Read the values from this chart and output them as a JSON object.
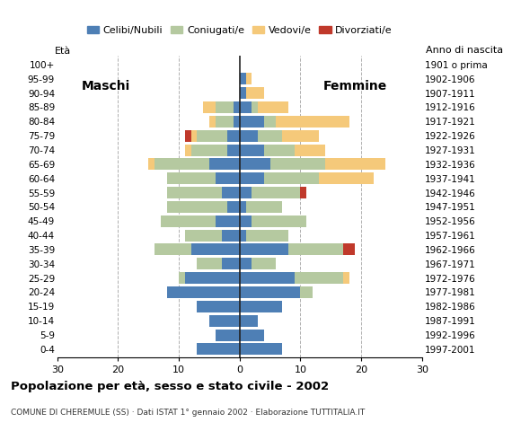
{
  "age_groups": [
    "0-4",
    "5-9",
    "10-14",
    "15-19",
    "20-24",
    "25-29",
    "30-34",
    "35-39",
    "40-44",
    "45-49",
    "50-54",
    "55-59",
    "60-64",
    "65-69",
    "70-74",
    "75-79",
    "80-84",
    "85-89",
    "90-94",
    "95-99",
    "100+"
  ],
  "birth_years": [
    "1997-2001",
    "1992-1996",
    "1987-1991",
    "1982-1986",
    "1977-1981",
    "1972-1976",
    "1967-1971",
    "1962-1966",
    "1957-1961",
    "1952-1956",
    "1947-1951",
    "1942-1946",
    "1937-1941",
    "1932-1936",
    "1927-1931",
    "1922-1926",
    "1917-1921",
    "1912-1916",
    "1907-1911",
    "1902-1906",
    "1901 o prima"
  ],
  "males": {
    "celibinubili": [
      7,
      4,
      5,
      7,
      12,
      9,
      3,
      8,
      3,
      4,
      2,
      3,
      4,
      5,
      2,
      2,
      1,
      1,
      0,
      0,
      0
    ],
    "coniugatipe": [
      0,
      0,
      0,
      0,
      0,
      1,
      4,
      6,
      6,
      9,
      10,
      9,
      8,
      9,
      6,
      5,
      3,
      3,
      0,
      0,
      0
    ],
    "vedovipe": [
      0,
      0,
      0,
      0,
      0,
      0,
      0,
      0,
      0,
      0,
      0,
      0,
      0,
      1,
      1,
      1,
      1,
      2,
      0,
      0,
      0
    ],
    "divorziatipe": [
      0,
      0,
      0,
      0,
      0,
      0,
      0,
      0,
      0,
      0,
      0,
      0,
      0,
      0,
      0,
      1,
      0,
      0,
      0,
      0,
      0
    ]
  },
  "females": {
    "celibinubili": [
      7,
      4,
      3,
      7,
      10,
      9,
      2,
      8,
      1,
      2,
      1,
      2,
      4,
      5,
      4,
      3,
      4,
      2,
      1,
      1,
      0
    ],
    "coniugatipe": [
      0,
      0,
      0,
      0,
      2,
      8,
      4,
      9,
      7,
      9,
      6,
      8,
      9,
      9,
      5,
      4,
      2,
      1,
      0,
      0,
      0
    ],
    "vedovipe": [
      0,
      0,
      0,
      0,
      0,
      1,
      0,
      0,
      0,
      0,
      0,
      0,
      9,
      10,
      5,
      6,
      12,
      5,
      3,
      1,
      0
    ],
    "divorziatipe": [
      0,
      0,
      0,
      0,
      0,
      0,
      0,
      2,
      0,
      0,
      0,
      1,
      0,
      0,
      0,
      0,
      0,
      0,
      0,
      0,
      0
    ]
  },
  "color_celibinubili": "#4e7fb5",
  "color_coniugatipe": "#b5c9a0",
  "color_vedovipe": "#f5c97a",
  "color_divorziatipe": "#c0392b",
  "xlim": 30,
  "title": "Popolazione per età, sesso e stato civile - 2002",
  "subtitle": "COMUNE DI CHEREMULE (SS) · Dati ISTAT 1° gennaio 2002 · Elaborazione TUTTITALIA.IT",
  "ylabel_eta": "Età",
  "ylabel_anno": "Anno di nascita",
  "label_maschi": "Maschi",
  "label_femmine": "Femmine",
  "legend_labels": [
    "Celibi/Nubili",
    "Coniugati/e",
    "Vedovi/e",
    "Divorziati/e"
  ],
  "background_color": "#ffffff",
  "grid_color": "#b0b0b0"
}
